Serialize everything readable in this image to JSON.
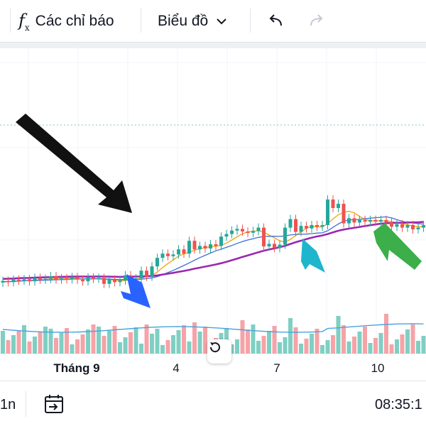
{
  "toolbar": {
    "indicators_label": "Các chỉ báo",
    "chart_type_label": "Biểu đồ",
    "icons": {
      "indicators": "function-fx-icon",
      "chart_type": "chevron-down-icon",
      "undo": "undo-arrow-icon",
      "redo": "redo-arrow-icon"
    }
  },
  "chart": {
    "x_labels": [
      "Tháng 9",
      "4",
      "7",
      "10"
    ],
    "colors": {
      "up": "#26a69a",
      "down": "#ef5350",
      "ma_fast": "#f0a500",
      "ma_mid": "#3f6fd8",
      "ma_slow": "#9c27b0",
      "vol_ma": "#4aa3df"
    },
    "reset_icon": "rotate-reset-icon"
  },
  "chart_data": {
    "type": "candlestick",
    "x_axis_ticks": [
      "Tháng 9",
      "4",
      "7",
      "10"
    ],
    "annotations": [
      "black arrow",
      "blue arrow",
      "cyan arrow",
      "green arrow"
    ]
  },
  "bottom_bar": {
    "interval_label": "1n",
    "time_label": "08:35:1",
    "date_range_icon": "calendar-arrow-icon"
  }
}
